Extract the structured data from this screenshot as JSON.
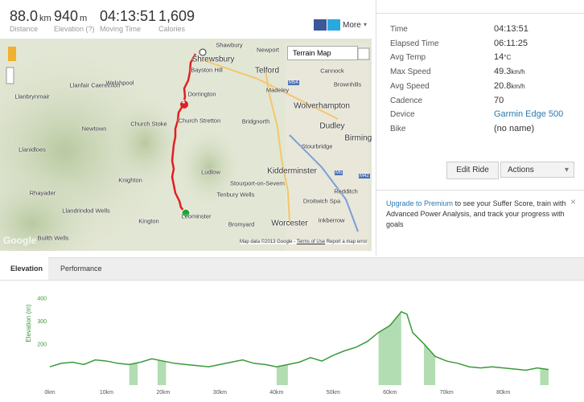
{
  "stats": [
    {
      "value": "88.0",
      "unit": "km",
      "label": "Distance"
    },
    {
      "value": "940",
      "unit": "m",
      "label": "Elevation (?)"
    },
    {
      "value": "04:13:51",
      "label": "Moving Time"
    },
    {
      "value": "1,609",
      "label": "Calories"
    }
  ],
  "share": {
    "more": "More"
  },
  "map": {
    "type_menu": "Terrain Map",
    "labels": [
      "Shawbury",
      "Newport",
      "Shrewsbury",
      "Bayston Hill",
      "Telford",
      "Cannock",
      "Brownhills",
      "Llanfair Caereinion",
      "Welshpool",
      "Madeley",
      "Dorrington",
      "Llanbrynmair",
      "Wolverhampton",
      "Church Stoke",
      "Church Stretton",
      "Bridgnorth",
      "Dudley",
      "Newtown",
      "Birmingham",
      "Llanidloes",
      "Stourbridge",
      "Kidderminster",
      "Ludlow",
      "Knighton",
      "Stourport-on-Severn",
      "Tenbury Wells",
      "Rhayader",
      "Droitwich Spa",
      "Redditch",
      "Llandrindod Wells",
      "Leominster",
      "Kington",
      "Bromyard",
      "Worcester",
      "Inkberrow",
      "Builth Wells"
    ],
    "roads": [
      "M54",
      "M5",
      "M42"
    ],
    "marker": "4",
    "logo": "Google",
    "attribution": "Map data ©2013 Google",
    "terms": "Terms of Use",
    "report": "Report a map error"
  },
  "details": [
    {
      "label": "Time",
      "value": "04:13:51"
    },
    {
      "label": "Elapsed Time",
      "value": "06:11:25"
    },
    {
      "label": "Avg Temp",
      "value": "14",
      "unit": "°C"
    },
    {
      "label": "Max Speed",
      "value": "49.3",
      "unit": "km/h"
    },
    {
      "label": "Avg Speed",
      "value": "20.8",
      "unit": "km/h"
    },
    {
      "label": "Cadence",
      "value": "70"
    },
    {
      "label": "Device",
      "value": "Garmin Edge 500"
    },
    {
      "label": "Bike",
      "value": "(no name)"
    }
  ],
  "buttons": {
    "edit": "Edit Ride",
    "actions": "Actions"
  },
  "premium": {
    "link": "Upgrade to Premium",
    "text": "to see your Suffer Score, train with Advanced Power Analysis, and track your progress with goals"
  },
  "tabs": [
    "Elevation",
    "Performance"
  ],
  "chart_data": {
    "type": "area",
    "y_label": "Elevation (m)",
    "x": [
      0,
      2,
      4,
      6,
      8,
      10,
      12,
      14,
      16,
      18,
      20,
      22,
      24,
      26,
      28,
      30,
      32,
      34,
      36,
      38,
      40,
      42,
      44,
      46,
      48,
      50,
      52,
      54,
      56,
      58,
      60,
      62,
      63,
      64,
      66,
      68,
      70,
      72,
      74,
      76,
      78,
      80,
      82,
      84,
      86,
      88
    ],
    "values": [
      100,
      115,
      120,
      110,
      130,
      125,
      115,
      110,
      120,
      135,
      125,
      115,
      110,
      105,
      100,
      110,
      120,
      130,
      115,
      110,
      100,
      110,
      120,
      140,
      125,
      150,
      170,
      185,
      210,
      250,
      280,
      340,
      330,
      250,
      200,
      145,
      125,
      115,
      100,
      95,
      100,
      95,
      90,
      85,
      95,
      88
    ],
    "color": "#3a9a3a",
    "shaded": [
      [
        14,
        15.5
      ],
      [
        19,
        20.5
      ],
      [
        40,
        42
      ],
      [
        58,
        62
      ],
      [
        66,
        68
      ],
      [
        86.5,
        88
      ]
    ],
    "xlim": [
      0,
      88
    ],
    "ylim": [
      20,
      420
    ],
    "xticks": [
      {
        "value": 0,
        "label": "0km"
      },
      {
        "value": 10,
        "label": "10km"
      },
      {
        "value": 20,
        "label": "20km"
      },
      {
        "value": 30,
        "label": "30km"
      },
      {
        "value": 40,
        "label": "40km"
      },
      {
        "value": 50,
        "label": "50km"
      },
      {
        "value": 60,
        "label": "60km"
      },
      {
        "value": 70,
        "label": "70km"
      },
      {
        "value": 80,
        "label": "80km"
      }
    ],
    "yticks": [
      200,
      300,
      400
    ]
  }
}
